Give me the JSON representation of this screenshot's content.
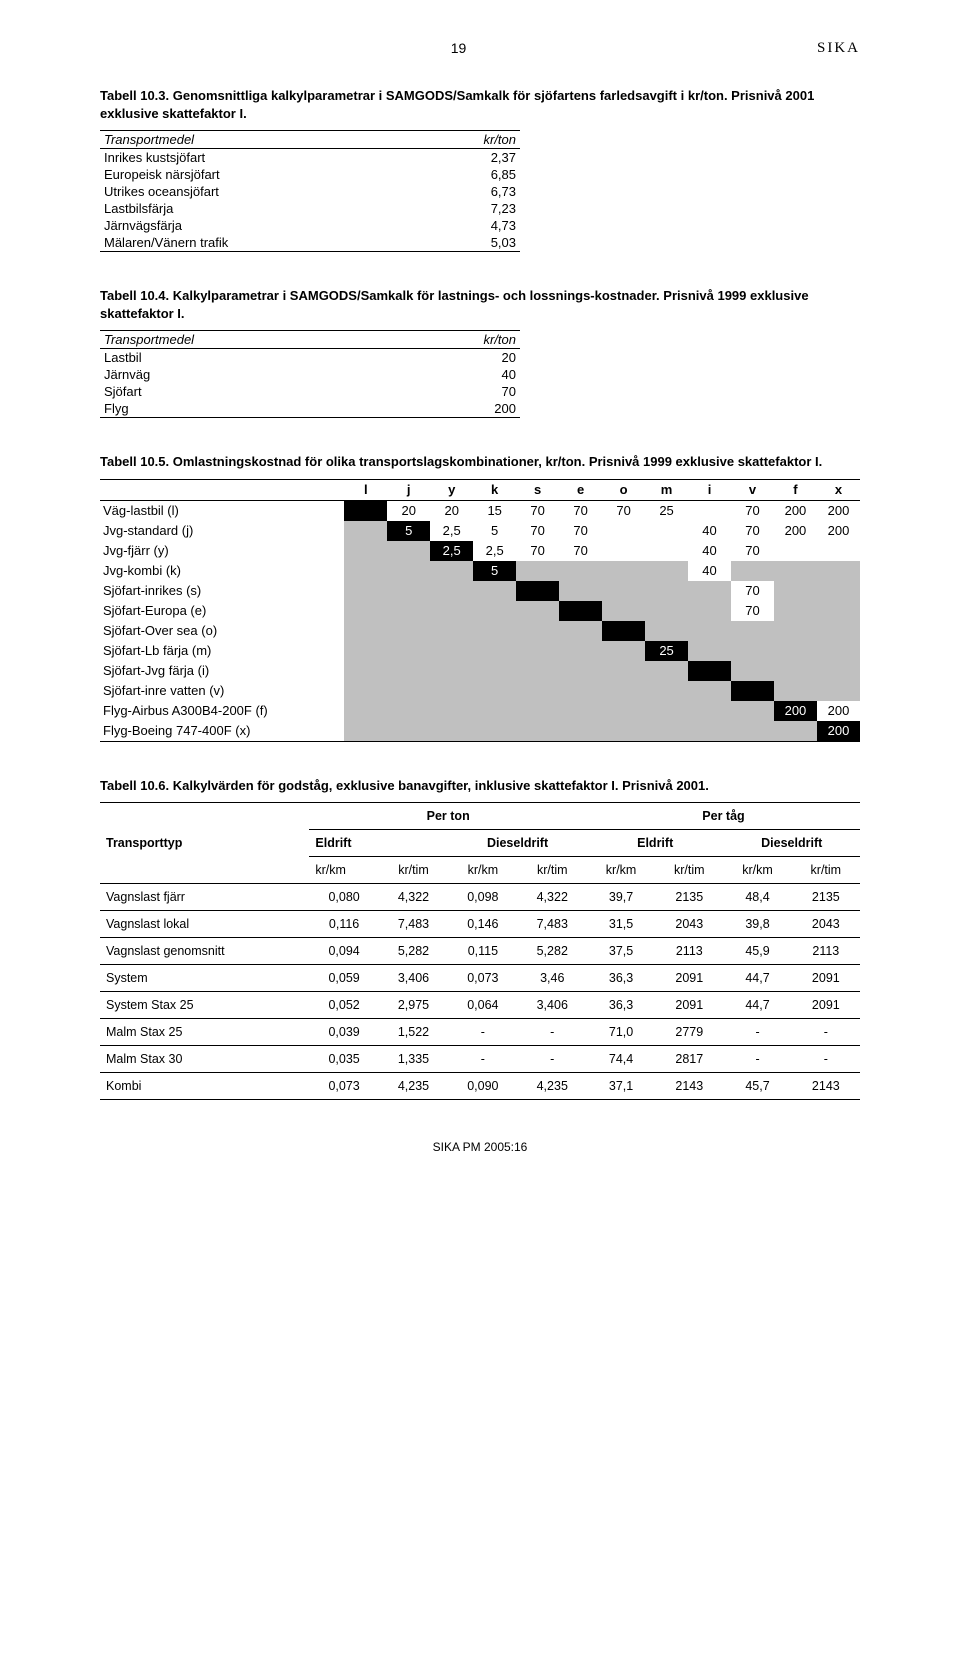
{
  "header": {
    "page_num": "19",
    "logo": "SIKA"
  },
  "t103": {
    "title": "Tabell 10.3. Genomsnittliga kalkylparametrar i SAMGODS/Samkalk för sjöfartens farledsavgift i kr/ton. Prisnivå 2001 exklusive skattefaktor I.",
    "col1": "Transportmedel",
    "col2": "kr/ton",
    "rows": [
      {
        "name": "Inrikes kustsjöfart",
        "val": "2,37"
      },
      {
        "name": "Europeisk närsjöfart",
        "val": "6,85"
      },
      {
        "name": "Utrikes oceansjöfart",
        "val": "6,73"
      },
      {
        "name": "Lastbilsfärja",
        "val": "7,23"
      },
      {
        "name": "Järnvägsfärja",
        "val": "4,73"
      },
      {
        "name": "Mälaren/Vänern trafik",
        "val": "5,03"
      }
    ]
  },
  "t104": {
    "title": "Tabell 10.4. Kalkylparametrar i SAMGODS/Samkalk för lastnings- och lossnings-kostnader. Prisnivå 1999 exklusive skattefaktor I.",
    "col1": "Transportmedel",
    "col2": "kr/ton",
    "rows": [
      {
        "name": "Lastbil",
        "val": "20"
      },
      {
        "name": "Järnväg",
        "val": "40"
      },
      {
        "name": "Sjöfart",
        "val": "70"
      },
      {
        "name": "Flyg",
        "val": "200"
      }
    ]
  },
  "t105": {
    "title": "Tabell 10.5. Omlastningskostnad för olika transportslagskombinationer, kr/ton. Prisnivå 1999 exklusive skattefaktor I.",
    "cols": [
      "",
      "l",
      "j",
      "y",
      "k",
      "s",
      "e",
      "o",
      "m",
      "i",
      "v",
      "f",
      "x"
    ],
    "rows": [
      {
        "name": "Väg-lastbil (l)",
        "cells": [
          {
            "t": "b"
          },
          {
            "t": "w",
            "v": "20"
          },
          {
            "t": "w",
            "v": "20"
          },
          {
            "t": "w",
            "v": "15"
          },
          {
            "t": "w",
            "v": "70"
          },
          {
            "t": "w",
            "v": "70"
          },
          {
            "t": "w",
            "v": "70"
          },
          {
            "t": "w",
            "v": "25"
          },
          {
            "t": "w",
            "v": ""
          },
          {
            "t": "w",
            "v": "70"
          },
          {
            "t": "w",
            "v": "200"
          },
          {
            "t": "w",
            "v": "200"
          }
        ]
      },
      {
        "name": "Jvg-standard (j)",
        "cells": [
          {
            "t": "g"
          },
          {
            "t": "b",
            "v": "5"
          },
          {
            "t": "w",
            "v": "2,5"
          },
          {
            "t": "w",
            "v": "5"
          },
          {
            "t": "w",
            "v": "70"
          },
          {
            "t": "w",
            "v": "70"
          },
          {
            "t": "w",
            "v": ""
          },
          {
            "t": "w",
            "v": ""
          },
          {
            "t": "w",
            "v": "40"
          },
          {
            "t": "w",
            "v": "70"
          },
          {
            "t": "w",
            "v": "200"
          },
          {
            "t": "w",
            "v": "200"
          }
        ]
      },
      {
        "name": "Jvg-fjärr (y)",
        "cells": [
          {
            "t": "g"
          },
          {
            "t": "g"
          },
          {
            "t": "b",
            "v": "2,5"
          },
          {
            "t": "w",
            "v": "2,5"
          },
          {
            "t": "w",
            "v": "70"
          },
          {
            "t": "w",
            "v": "70"
          },
          {
            "t": "w",
            "v": ""
          },
          {
            "t": "w",
            "v": ""
          },
          {
            "t": "w",
            "v": "40"
          },
          {
            "t": "w",
            "v": "70"
          },
          {
            "t": "w",
            "v": ""
          },
          {
            "t": "w",
            "v": ""
          }
        ]
      },
      {
        "name": "Jvg-kombi (k)",
        "cells": [
          {
            "t": "g"
          },
          {
            "t": "g"
          },
          {
            "t": "g"
          },
          {
            "t": "b",
            "v": "5"
          },
          {
            "t": "g",
            "v": ""
          },
          {
            "t": "g",
            "v": ""
          },
          {
            "t": "g",
            "v": ""
          },
          {
            "t": "g",
            "v": ""
          },
          {
            "t": "w",
            "v": "40"
          },
          {
            "t": "g",
            "v": ""
          },
          {
            "t": "g",
            "v": ""
          },
          {
            "t": "g",
            "v": ""
          }
        ]
      },
      {
        "name": "Sjöfart-inrikes (s)",
        "cells": [
          {
            "t": "g"
          },
          {
            "t": "g"
          },
          {
            "t": "g"
          },
          {
            "t": "g"
          },
          {
            "t": "b"
          },
          {
            "t": "g"
          },
          {
            "t": "g"
          },
          {
            "t": "g"
          },
          {
            "t": "g"
          },
          {
            "t": "w",
            "v": "70"
          },
          {
            "t": "g"
          },
          {
            "t": "g"
          }
        ]
      },
      {
        "name": "Sjöfart-Europa (e)",
        "cells": [
          {
            "t": "g"
          },
          {
            "t": "g"
          },
          {
            "t": "g"
          },
          {
            "t": "g"
          },
          {
            "t": "g"
          },
          {
            "t": "b"
          },
          {
            "t": "g"
          },
          {
            "t": "g"
          },
          {
            "t": "g"
          },
          {
            "t": "w",
            "v": "70"
          },
          {
            "t": "g"
          },
          {
            "t": "g"
          }
        ]
      },
      {
        "name": "Sjöfart-Over sea (o)",
        "cells": [
          {
            "t": "g"
          },
          {
            "t": "g"
          },
          {
            "t": "g"
          },
          {
            "t": "g"
          },
          {
            "t": "g"
          },
          {
            "t": "g"
          },
          {
            "t": "b"
          },
          {
            "t": "g"
          },
          {
            "t": "g"
          },
          {
            "t": "g"
          },
          {
            "t": "g"
          },
          {
            "t": "g"
          }
        ]
      },
      {
        "name": "Sjöfart-Lb färja (m)",
        "cells": [
          {
            "t": "g"
          },
          {
            "t": "g"
          },
          {
            "t": "g"
          },
          {
            "t": "g"
          },
          {
            "t": "g"
          },
          {
            "t": "g"
          },
          {
            "t": "g"
          },
          {
            "t": "b",
            "v": "25"
          },
          {
            "t": "g"
          },
          {
            "t": "g"
          },
          {
            "t": "g"
          },
          {
            "t": "g"
          }
        ]
      },
      {
        "name": "Sjöfart-Jvg färja (i)",
        "cells": [
          {
            "t": "g"
          },
          {
            "t": "g"
          },
          {
            "t": "g"
          },
          {
            "t": "g"
          },
          {
            "t": "g"
          },
          {
            "t": "g"
          },
          {
            "t": "g"
          },
          {
            "t": "g"
          },
          {
            "t": "b"
          },
          {
            "t": "g"
          },
          {
            "t": "g"
          },
          {
            "t": "g"
          }
        ]
      },
      {
        "name": "Sjöfart-inre vatten (v)",
        "cells": [
          {
            "t": "g"
          },
          {
            "t": "g"
          },
          {
            "t": "g"
          },
          {
            "t": "g"
          },
          {
            "t": "g"
          },
          {
            "t": "g"
          },
          {
            "t": "g"
          },
          {
            "t": "g"
          },
          {
            "t": "g"
          },
          {
            "t": "b"
          },
          {
            "t": "g"
          },
          {
            "t": "g"
          }
        ]
      },
      {
        "name": "Flyg-Airbus A300B4-200F (f)",
        "cells": [
          {
            "t": "g"
          },
          {
            "t": "g"
          },
          {
            "t": "g"
          },
          {
            "t": "g"
          },
          {
            "t": "g"
          },
          {
            "t": "g"
          },
          {
            "t": "g"
          },
          {
            "t": "g"
          },
          {
            "t": "g"
          },
          {
            "t": "g"
          },
          {
            "t": "b",
            "v": "200"
          },
          {
            "t": "w",
            "v": "200"
          }
        ]
      },
      {
        "name": "Flyg-Boeing 747-400F (x)",
        "cells": [
          {
            "t": "g"
          },
          {
            "t": "g"
          },
          {
            "t": "g"
          },
          {
            "t": "g"
          },
          {
            "t": "g"
          },
          {
            "t": "g"
          },
          {
            "t": "g"
          },
          {
            "t": "g"
          },
          {
            "t": "g"
          },
          {
            "t": "g"
          },
          {
            "t": "g"
          },
          {
            "t": "b",
            "v": "200"
          }
        ]
      }
    ]
  },
  "t106": {
    "title": "Tabell 10.6. Kalkylvärden för godståg, exklusive banavgifter, inklusive skattefaktor I. Prisnivå 2001.",
    "h1": {
      "c1": "Transporttyp",
      "c2": "Per ton",
      "c3": "Per tåg"
    },
    "h2": [
      "Eldrift",
      "Dieseldrift",
      "Eldrift",
      "Dieseldrift"
    ],
    "h3": [
      "kr/km",
      "kr/tim",
      "kr/km",
      "kr/tim",
      "kr/km",
      "kr/tim",
      "kr/km",
      "kr/tim"
    ],
    "rows": [
      {
        "name": "Vagnslast fjärr",
        "v": [
          "0,080",
          "4,322",
          "0,098",
          "4,322",
          "39,7",
          "2135",
          "48,4",
          "2135"
        ]
      },
      {
        "name": "Vagnslast lokal",
        "v": [
          "0,116",
          "7,483",
          "0,146",
          "7,483",
          "31,5",
          "2043",
          "39,8",
          "2043"
        ]
      },
      {
        "name": "Vagnslast genomsnitt",
        "v": [
          "0,094",
          "5,282",
          "0,115",
          "5,282",
          "37,5",
          "2113",
          "45,9",
          "2113"
        ]
      },
      {
        "name": "System",
        "v": [
          "0,059",
          "3,406",
          "0,073",
          "3,46",
          "36,3",
          "2091",
          "44,7",
          "2091"
        ]
      },
      {
        "name": "System Stax 25",
        "v": [
          "0,052",
          "2,975",
          "0,064",
          "3,406",
          "36,3",
          "2091",
          "44,7",
          "2091"
        ]
      },
      {
        "name": "Malm Stax 25",
        "v": [
          "0,039",
          "1,522",
          "-",
          "-",
          "71,0",
          "2779",
          "-",
          "-"
        ]
      },
      {
        "name": "Malm Stax 30",
        "v": [
          "0,035",
          "1,335",
          "-",
          "-",
          "74,4",
          "2817",
          "-",
          "-"
        ]
      },
      {
        "name": "Kombi",
        "v": [
          "0,073",
          "4,235",
          "0,090",
          "4,235",
          "37,1",
          "2143",
          "45,7",
          "2143"
        ]
      }
    ]
  },
  "footer": "SIKA PM 2005:16"
}
